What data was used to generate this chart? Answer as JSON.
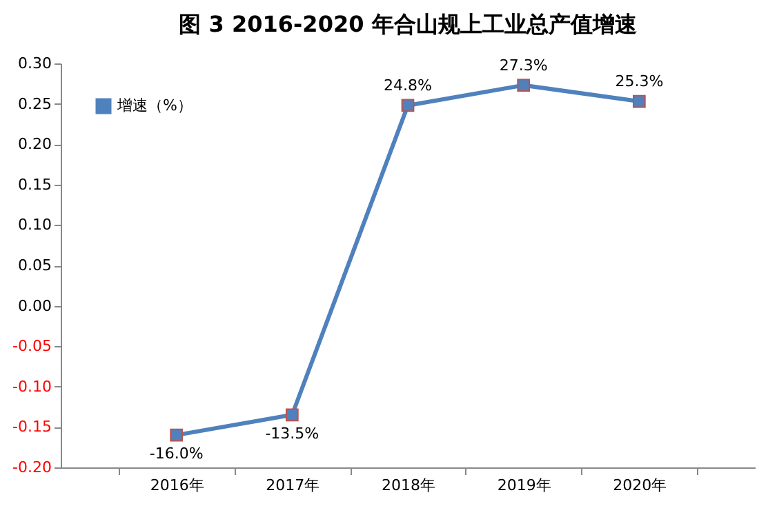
{
  "chart_data": {
    "type": "line",
    "title": "图 3 2016-2020 年合山规上工业总产值增速",
    "categories": [
      "2016年",
      "2017年",
      "2018年",
      "2019年",
      "2020年"
    ],
    "series": [
      {
        "name": "增速（%）",
        "color": "#4f81bd",
        "values": [
          -0.16,
          -0.135,
          0.248,
          0.273,
          0.253
        ],
        "value_labels": [
          "-16.0%",
          "-13.5%",
          "24.8%",
          "27.3%",
          "25.3%"
        ]
      }
    ],
    "ylim": [
      -0.2,
      0.3
    ],
    "yticks": [
      {
        "value": -0.2,
        "label": "-0.20"
      },
      {
        "value": -0.15,
        "label": "-0.15"
      },
      {
        "value": -0.1,
        "label": "-0.10"
      },
      {
        "value": -0.05,
        "label": "-0.05"
      },
      {
        "value": 0,
        "label": "0.00"
      },
      {
        "value": 0.05,
        "label": "0.05"
      },
      {
        "value": 0.1,
        "label": "0.10"
      },
      {
        "value": 0.15,
        "label": "0.15"
      },
      {
        "value": 0.2,
        "label": "0.20"
      },
      {
        "value": 0.25,
        "label": "0.25"
      },
      {
        "value": 0.3,
        "label": "0.30"
      }
    ],
    "grid": false,
    "legend": "top left",
    "marker": "square",
    "line_style": "solid"
  }
}
